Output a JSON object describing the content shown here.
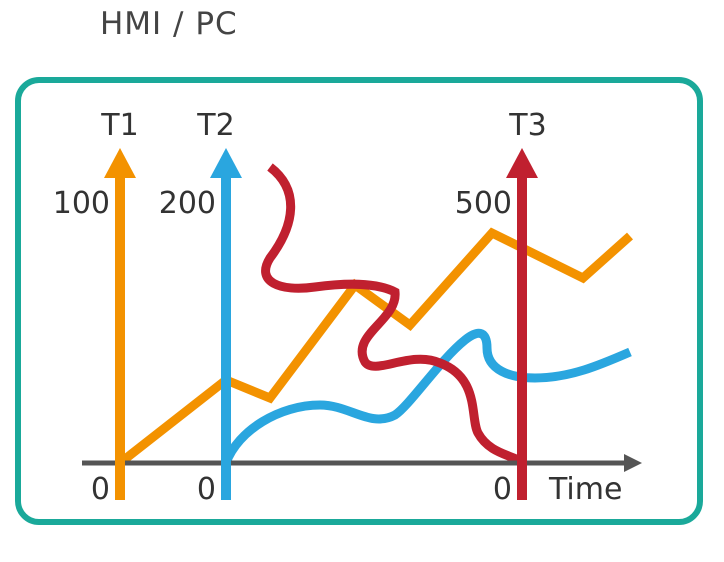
{
  "title": "HMI / PC",
  "x_axis": {
    "label": "Time",
    "color": "#555555"
  },
  "frame_color": "#1aa99a",
  "axes": [
    {
      "id": "t1",
      "name": "T1",
      "max_label": "100",
      "zero_label": "0",
      "color": "#f39200"
    },
    {
      "id": "t2",
      "name": "T2",
      "max_label": "200",
      "zero_label": "0",
      "color": "#2aa6df"
    },
    {
      "id": "t3",
      "name": "T3",
      "max_label": "500",
      "zero_label": "0",
      "color": "#c0202f"
    }
  ],
  "curves": [
    {
      "id": "t1",
      "color": "#f39200"
    },
    {
      "id": "t2",
      "color": "#2aa6df"
    },
    {
      "id": "t3",
      "color": "#c0202f"
    }
  ]
}
